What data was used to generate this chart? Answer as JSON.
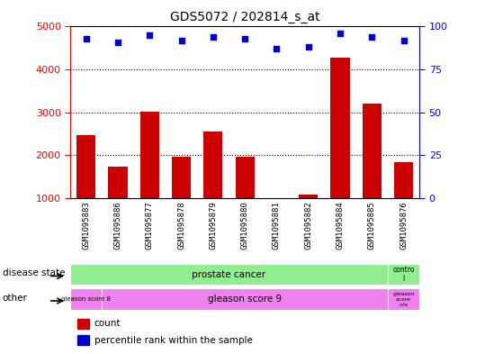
{
  "title": "GDS5072 / 202814_s_at",
  "samples": [
    "GSM1095883",
    "GSM1095886",
    "GSM1095877",
    "GSM1095878",
    "GSM1095879",
    "GSM1095880",
    "GSM1095881",
    "GSM1095882",
    "GSM1095884",
    "GSM1095885",
    "GSM1095876"
  ],
  "counts": [
    2480,
    1730,
    3020,
    1960,
    2560,
    1970,
    940,
    1090,
    4280,
    3210,
    1840
  ],
  "percentile_ranks": [
    93,
    91,
    95,
    92,
    94,
    93,
    87,
    88,
    96,
    94,
    92
  ],
  "ylim_left": [
    1000,
    5000
  ],
  "ylim_right": [
    0,
    100
  ],
  "yticks_left": [
    1000,
    2000,
    3000,
    4000,
    5000
  ],
  "yticks_right": [
    0,
    25,
    50,
    75,
    100
  ],
  "bar_color": "#cc0000",
  "dot_color": "#0000cc",
  "plot_bg": "#ffffff",
  "grid_dotted_values": [
    2000,
    3000,
    4000
  ],
  "disease_state_row_color": "#90ee90",
  "other_row_color_1": "#ee82ee",
  "other_row_color_2": "#ee82ee",
  "tick_bg": "#d0d0d0",
  "tick_fontsize": 8,
  "label_fontsize": 8
}
